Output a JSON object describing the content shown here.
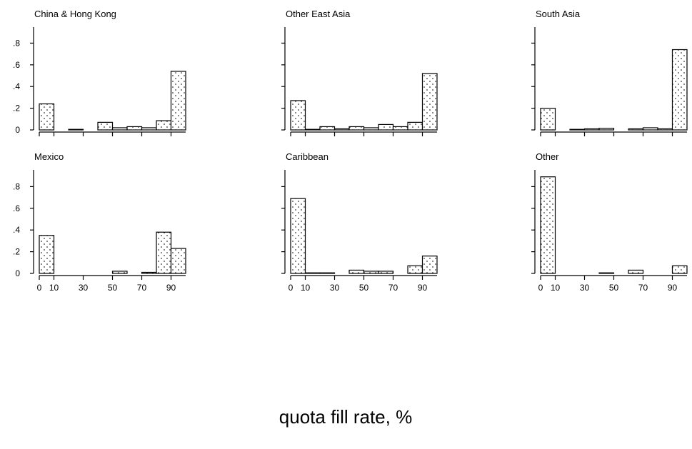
{
  "figure": {
    "xlabel": "quota fill rate, %"
  },
  "chart_data": [
    {
      "type": "bar",
      "title": "China &  Hong Kong",
      "bin_edges": [
        0,
        10,
        20,
        30,
        40,
        50,
        60,
        70,
        80,
        90,
        100
      ],
      "values": [
        0.24,
        0,
        0.005,
        0,
        0.07,
        0.02,
        0.03,
        0.02,
        0.085,
        0.54
      ],
      "ylim": [
        0,
        0.95
      ],
      "yticks": [
        "0",
        ".2",
        ".4",
        ".6",
        ".8"
      ],
      "xticks": [
        "0",
        "10",
        "30",
        "50",
        "70",
        "90"
      ],
      "show_x_labels": false,
      "show_y_labels": true
    },
    {
      "type": "bar",
      "title": "Other East Asia",
      "bin_edges": [
        0,
        10,
        20,
        30,
        40,
        50,
        60,
        70,
        80,
        90,
        100
      ],
      "values": [
        0.27,
        0.005,
        0.03,
        0.01,
        0.03,
        0.02,
        0.05,
        0.03,
        0.07,
        0.52
      ],
      "ylim": [
        0,
        0.95
      ],
      "yticks": [
        "0",
        ".2",
        ".4",
        ".6",
        ".8"
      ],
      "xticks": [
        "0",
        "10",
        "30",
        "50",
        "70",
        "90"
      ],
      "show_x_labels": false,
      "show_y_labels": false
    },
    {
      "type": "bar",
      "title": "South Asia",
      "bin_edges": [
        0,
        10,
        20,
        30,
        40,
        50,
        60,
        70,
        80,
        90,
        100
      ],
      "values": [
        0.2,
        0,
        0.005,
        0.01,
        0.015,
        0,
        0.01,
        0.02,
        0.01,
        0.74
      ],
      "ylim": [
        0,
        0.95
      ],
      "yticks": [
        "0",
        ".2",
        ".4",
        ".6",
        ".8"
      ],
      "xticks": [
        "0",
        "10",
        "30",
        "50",
        "70",
        "90"
      ],
      "show_x_labels": false,
      "show_y_labels": false
    },
    {
      "type": "bar",
      "title": "Mexico",
      "bin_edges": [
        0,
        10,
        20,
        30,
        40,
        50,
        60,
        70,
        80,
        90,
        100
      ],
      "values": [
        0.35,
        0,
        0,
        0,
        0,
        0.02,
        0,
        0.01,
        0.38,
        0.23
      ],
      "ylim": [
        0,
        0.95
      ],
      "yticks": [
        "0",
        ".2",
        ".4",
        ".6",
        ".8"
      ],
      "xticks": [
        "0",
        "10",
        "30",
        "50",
        "70",
        "90"
      ],
      "show_x_labels": true,
      "show_y_labels": true
    },
    {
      "type": "bar",
      "title": "Caribbean",
      "bin_edges": [
        0,
        10,
        20,
        30,
        40,
        50,
        60,
        70,
        80,
        90,
        100
      ],
      "values": [
        0.69,
        0.005,
        0.005,
        0,
        0.03,
        0.02,
        0.02,
        0,
        0.07,
        0.16
      ],
      "ylim": [
        0,
        0.95
      ],
      "yticks": [
        "0",
        ".2",
        ".4",
        ".6",
        ".8"
      ],
      "xticks": [
        "0",
        "10",
        "30",
        "50",
        "70",
        "90"
      ],
      "show_x_labels": true,
      "show_y_labels": false
    },
    {
      "type": "bar",
      "title": "Other",
      "bin_edges": [
        0,
        10,
        20,
        30,
        40,
        50,
        60,
        70,
        80,
        90,
        100
      ],
      "values": [
        0.89,
        0,
        0,
        0,
        0.005,
        0,
        0.03,
        0,
        0,
        0.07
      ],
      "ylim": [
        0,
        0.95
      ],
      "yticks": [
        "0",
        ".2",
        ".4",
        ".6",
        ".8"
      ],
      "xticks": [
        "0",
        "10",
        "30",
        "50",
        "70",
        "90"
      ],
      "show_x_labels": true,
      "show_y_labels": false
    }
  ]
}
